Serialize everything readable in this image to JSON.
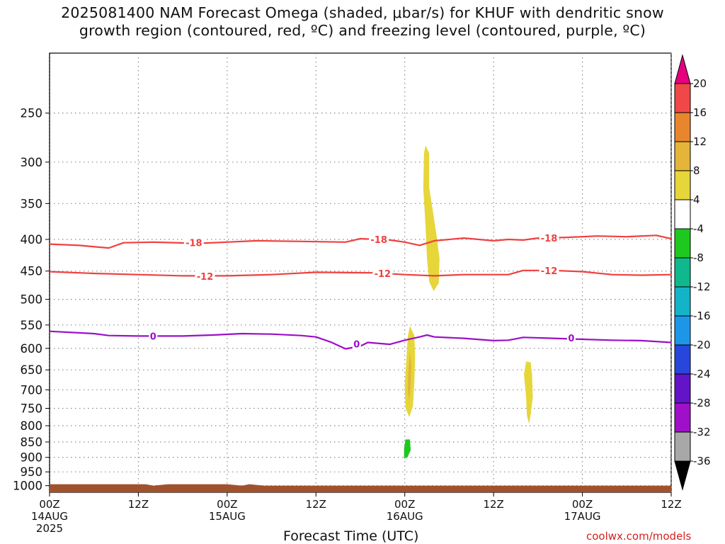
{
  "title": {
    "line1": "2025081400 NAM Forecast Omega (shaded, μbar/s) for KHUF with dendritic snow",
    "line2": "growth region (contoured, red, ºC) and freezing level (contoured, purple, ºC)"
  },
  "footer": {
    "xlabel": "Forecast Time (UTC)",
    "credit": "coolwx.com/models"
  },
  "colors": {
    "grid": "#8a8a8a",
    "dgz": "#f04040",
    "freezing": "#9a10c8",
    "ground": "#a0522d",
    "axis": "#000000"
  },
  "chart_data": {
    "type": "heatmap",
    "x_ticks": [
      {
        "hour": 0,
        "lines": [
          "00Z",
          "14AUG",
          "2025"
        ]
      },
      {
        "hour": 12,
        "lines": [
          "12Z"
        ]
      },
      {
        "hour": 24,
        "lines": [
          "00Z",
          "15AUG"
        ]
      },
      {
        "hour": 36,
        "lines": [
          "12Z"
        ]
      },
      {
        "hour": 48,
        "lines": [
          "00Z",
          "16AUG"
        ]
      },
      {
        "hour": 60,
        "lines": [
          "12Z"
        ]
      },
      {
        "hour": 72,
        "lines": [
          "00Z",
          "17AUG"
        ]
      },
      {
        "hour": 84,
        "lines": [
          "12Z"
        ]
      }
    ],
    "xlim_hours": [
      0,
      84
    ],
    "y_ticks": [
      250,
      300,
      350,
      400,
      450,
      500,
      550,
      600,
      650,
      700,
      750,
      800,
      850,
      900,
      950,
      1000
    ],
    "ylim_mb": [
      200,
      1025
    ],
    "y_scale": "log",
    "grid": true,
    "surface_mb": 1000,
    "colorbar": {
      "orientation": "vertical",
      "position": "right",
      "bins": [
        {
          "color": "#e6007e"
        },
        {
          "color": "#f04848"
        },
        {
          "color": "#e8862e"
        },
        {
          "color": "#e4b53a"
        },
        {
          "color": "#e6d63a"
        },
        {
          "color": "#ffffff"
        },
        {
          "color": "#1ec81e"
        },
        {
          "color": "#10b88e"
        },
        {
          "color": "#14b4c8"
        },
        {
          "color": "#1e96e8"
        },
        {
          "color": "#2846dc"
        },
        {
          "color": "#6414c8"
        },
        {
          "color": "#a010c8"
        },
        {
          "color": "#a8a8a8"
        },
        {
          "color": "#000000"
        }
      ],
      "tick_labels": [
        "20",
        "16",
        "12",
        "8",
        "4",
        "-4",
        "-8",
        "-12",
        "-16",
        "-20",
        "-24",
        "-28",
        "-32",
        "-36"
      ]
    },
    "contours": [
      {
        "level": "-18",
        "color": "#f04040",
        "points": [
          [
            0,
            407
          ],
          [
            4,
            409
          ],
          [
            8,
            413
          ],
          [
            10,
            405
          ],
          [
            14,
            404
          ],
          [
            20,
            406
          ],
          [
            24,
            404
          ],
          [
            28,
            402
          ],
          [
            34,
            403
          ],
          [
            40,
            404
          ],
          [
            42,
            399
          ],
          [
            46,
            401
          ],
          [
            48,
            404
          ],
          [
            50,
            409
          ],
          [
            52,
            402
          ],
          [
            56,
            398
          ],
          [
            60,
            402
          ],
          [
            62,
            400
          ],
          [
            64,
            401
          ],
          [
            66,
            398
          ],
          [
            70,
            397
          ],
          [
            74,
            395
          ],
          [
            78,
            396
          ],
          [
            82,
            394
          ],
          [
            84,
            399
          ]
        ],
        "labels": [
          [
            19.5,
            405
          ],
          [
            44.5,
            400
          ],
          [
            67.5,
            398
          ]
        ]
      },
      {
        "level": "-12",
        "color": "#f04040",
        "points": [
          [
            0,
            451
          ],
          [
            6,
            454
          ],
          [
            12,
            456
          ],
          [
            18,
            458
          ],
          [
            24,
            458
          ],
          [
            30,
            456
          ],
          [
            36,
            452
          ],
          [
            44,
            453
          ],
          [
            48,
            456
          ],
          [
            52,
            458
          ],
          [
            56,
            456
          ],
          [
            62,
            456
          ],
          [
            64,
            449
          ],
          [
            68,
            449
          ],
          [
            72,
            451
          ],
          [
            76,
            456
          ],
          [
            80,
            457
          ],
          [
            84,
            456
          ]
        ],
        "labels": [
          [
            21,
            459
          ],
          [
            45,
            454
          ],
          [
            67.5,
            449
          ]
        ]
      },
      {
        "level": "0",
        "color": "#9a10c8",
        "points": [
          [
            0,
            563
          ],
          [
            6,
            568
          ],
          [
            8,
            572
          ],
          [
            12,
            573
          ],
          [
            18,
            573
          ],
          [
            22,
            571
          ],
          [
            26,
            568
          ],
          [
            30,
            569
          ],
          [
            34,
            572
          ],
          [
            36,
            575
          ],
          [
            38,
            586
          ],
          [
            40,
            601
          ],
          [
            42,
            595
          ],
          [
            43,
            587
          ],
          [
            46,
            591
          ],
          [
            48,
            582
          ],
          [
            50,
            575
          ],
          [
            51,
            571
          ],
          [
            52,
            575
          ],
          [
            56,
            578
          ],
          [
            60,
            583
          ],
          [
            62,
            582
          ],
          [
            64,
            576
          ],
          [
            68,
            578
          ],
          [
            72,
            580
          ],
          [
            76,
            582
          ],
          [
            80,
            583
          ],
          [
            84,
            587
          ]
        ],
        "labels": [
          [
            14,
            573
          ],
          [
            41.5,
            590
          ],
          [
            70.5,
            577
          ]
        ]
      }
    ],
    "shaded_regions": [
      {
        "bin": "4 to 8",
        "points": [
          [
            50.8,
            282
          ],
          [
            51.3,
            290
          ],
          [
            51.3,
            330
          ],
          [
            51.8,
            360
          ],
          [
            52.3,
            395
          ],
          [
            52.7,
            430
          ],
          [
            52.6,
            470
          ],
          [
            51.9,
            485
          ],
          [
            51.3,
            468
          ],
          [
            51.0,
            430
          ],
          [
            50.8,
            380
          ],
          [
            50.5,
            330
          ],
          [
            50.6,
            290
          ]
        ]
      },
      {
        "bin": "4 to 8",
        "points": [
          [
            48.7,
            552
          ],
          [
            49.3,
            572
          ],
          [
            49.4,
            620
          ],
          [
            49.3,
            680
          ],
          [
            49.1,
            745
          ],
          [
            48.6,
            775
          ],
          [
            48.1,
            750
          ],
          [
            48.0,
            690
          ],
          [
            48.2,
            630
          ],
          [
            48.4,
            575
          ]
        ]
      },
      {
        "bin": "8 to 12",
        "points": [
          [
            48.7,
            610
          ],
          [
            48.9,
            640
          ],
          [
            48.8,
            690
          ],
          [
            48.6,
            730
          ],
          [
            48.4,
            700
          ],
          [
            48.5,
            650
          ]
        ]
      },
      {
        "bin": "4 to 8",
        "points": [
          [
            64.4,
            630
          ],
          [
            65.0,
            632
          ],
          [
            65.2,
            660
          ],
          [
            65.3,
            720
          ],
          [
            65.0,
            770
          ],
          [
            64.8,
            795
          ],
          [
            64.5,
            770
          ],
          [
            64.4,
            720
          ],
          [
            64.1,
            660
          ]
        ]
      },
      {
        "bin": "-8 to -4",
        "points": [
          [
            48.1,
            842
          ],
          [
            48.7,
            842
          ],
          [
            48.8,
            876
          ],
          [
            48.4,
            898
          ],
          [
            47.9,
            905
          ],
          [
            47.9,
            870
          ]
        ]
      }
    ]
  }
}
